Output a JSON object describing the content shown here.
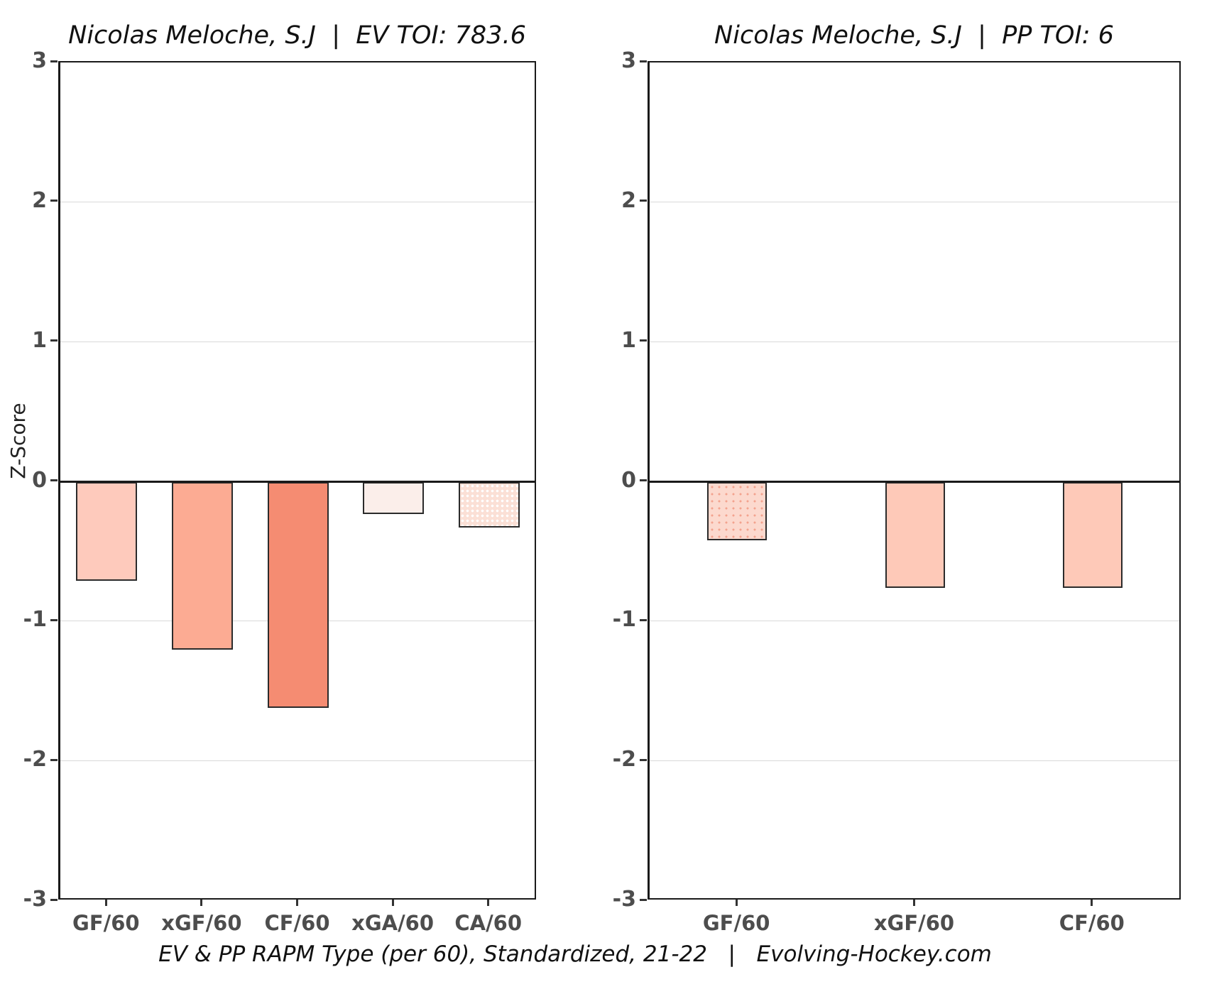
{
  "figure": {
    "ylabel": "Z-Score",
    "caption": "EV & PP RAPM Type (per 60), Standardized, 21-22   |   Evolving-Hockey.com",
    "axis_text_color": "#4d4d4d",
    "grid_color": "#d9d9d9",
    "spine_color": "#1a1a1a"
  },
  "chart_data": [
    {
      "type": "bar",
      "title": "Nicolas Meloche, S.J  |  EV TOI: 783.6",
      "categories": [
        "GF/60",
        "xGF/60",
        "CF/60",
        "xGA/60",
        "CA/60"
      ],
      "values": [
        -0.71,
        -1.2,
        -1.62,
        -0.23,
        -0.33
      ],
      "bar_colors": [
        "#fecabc",
        "#fcab93",
        "#f58c72",
        "#fbeeea",
        "#fbe0d6"
      ],
      "bar_patterns": [
        null,
        null,
        null,
        null,
        "white-dots"
      ],
      "ylabel": "Z-Score",
      "ylim": [
        -3,
        3
      ],
      "yticks": [
        3,
        2,
        1,
        0,
        -1,
        -2,
        -3
      ],
      "gridlines_at": [
        2,
        1,
        -1,
        -2
      ],
      "grid": true,
      "legend": false
    },
    {
      "type": "bar",
      "title": "Nicolas Meloche, S.J  |  PP TOI: 6",
      "categories": [
        "GF/60",
        "xGF/60",
        "CF/60"
      ],
      "values": [
        -0.42,
        -0.76,
        -0.76
      ],
      "bar_colors": [
        "#fcd9ce",
        "#fec9b8",
        "#fec9b8"
      ],
      "bar_patterns": [
        "pink-dots",
        null,
        null
      ],
      "ylabel": "Z-Score",
      "ylim": [
        -3,
        3
      ],
      "yticks": [
        3,
        2,
        1,
        0,
        -1,
        -2,
        -3
      ],
      "gridlines_at": [
        2,
        1,
        -1,
        -2
      ],
      "grid": true,
      "legend": false
    }
  ]
}
